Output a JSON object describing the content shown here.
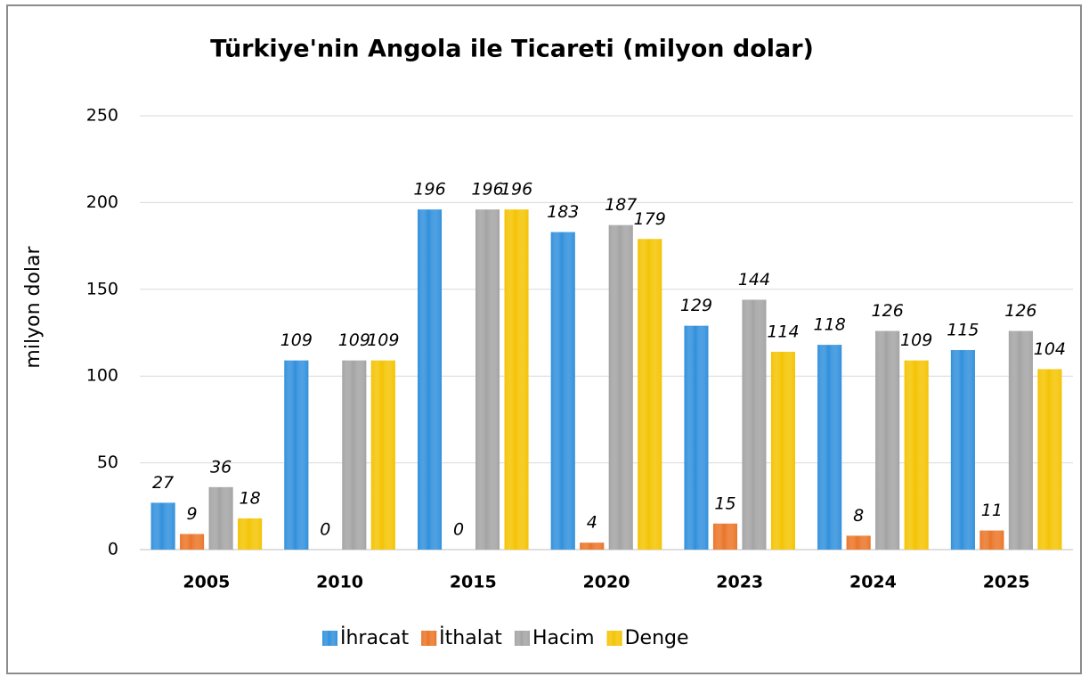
{
  "chart_data": {
    "type": "bar",
    "title": "Türkiye'nin Angola ile Ticareti (milyon dolar)",
    "y_label": "milyon dolar",
    "categories": [
      "2005",
      "2010",
      "2015",
      "2020",
      "2023",
      "2024",
      "2025"
    ],
    "series": [
      {
        "name": "İhracat",
        "color": "#2f8fdc",
        "values": [
          27,
          109,
          196,
          183,
          129,
          118,
          115
        ]
      },
      {
        "name": "İthalat",
        "color": "#ea7426",
        "values": [
          9,
          0,
          0,
          4,
          15,
          8,
          11
        ]
      },
      {
        "name": "Hacim",
        "color": "#a3a3a3",
        "values": [
          36,
          109,
          196,
          187,
          144,
          126,
          126
        ]
      },
      {
        "name": "Denge",
        "color": "#f4c300",
        "values": [
          18,
          109,
          196,
          179,
          114,
          109,
          104
        ]
      }
    ],
    "ylim": [
      0,
      250
    ],
    "yticks": [
      0,
      50,
      100,
      150,
      200,
      250
    ],
    "grid": true,
    "legend": "bottom"
  }
}
